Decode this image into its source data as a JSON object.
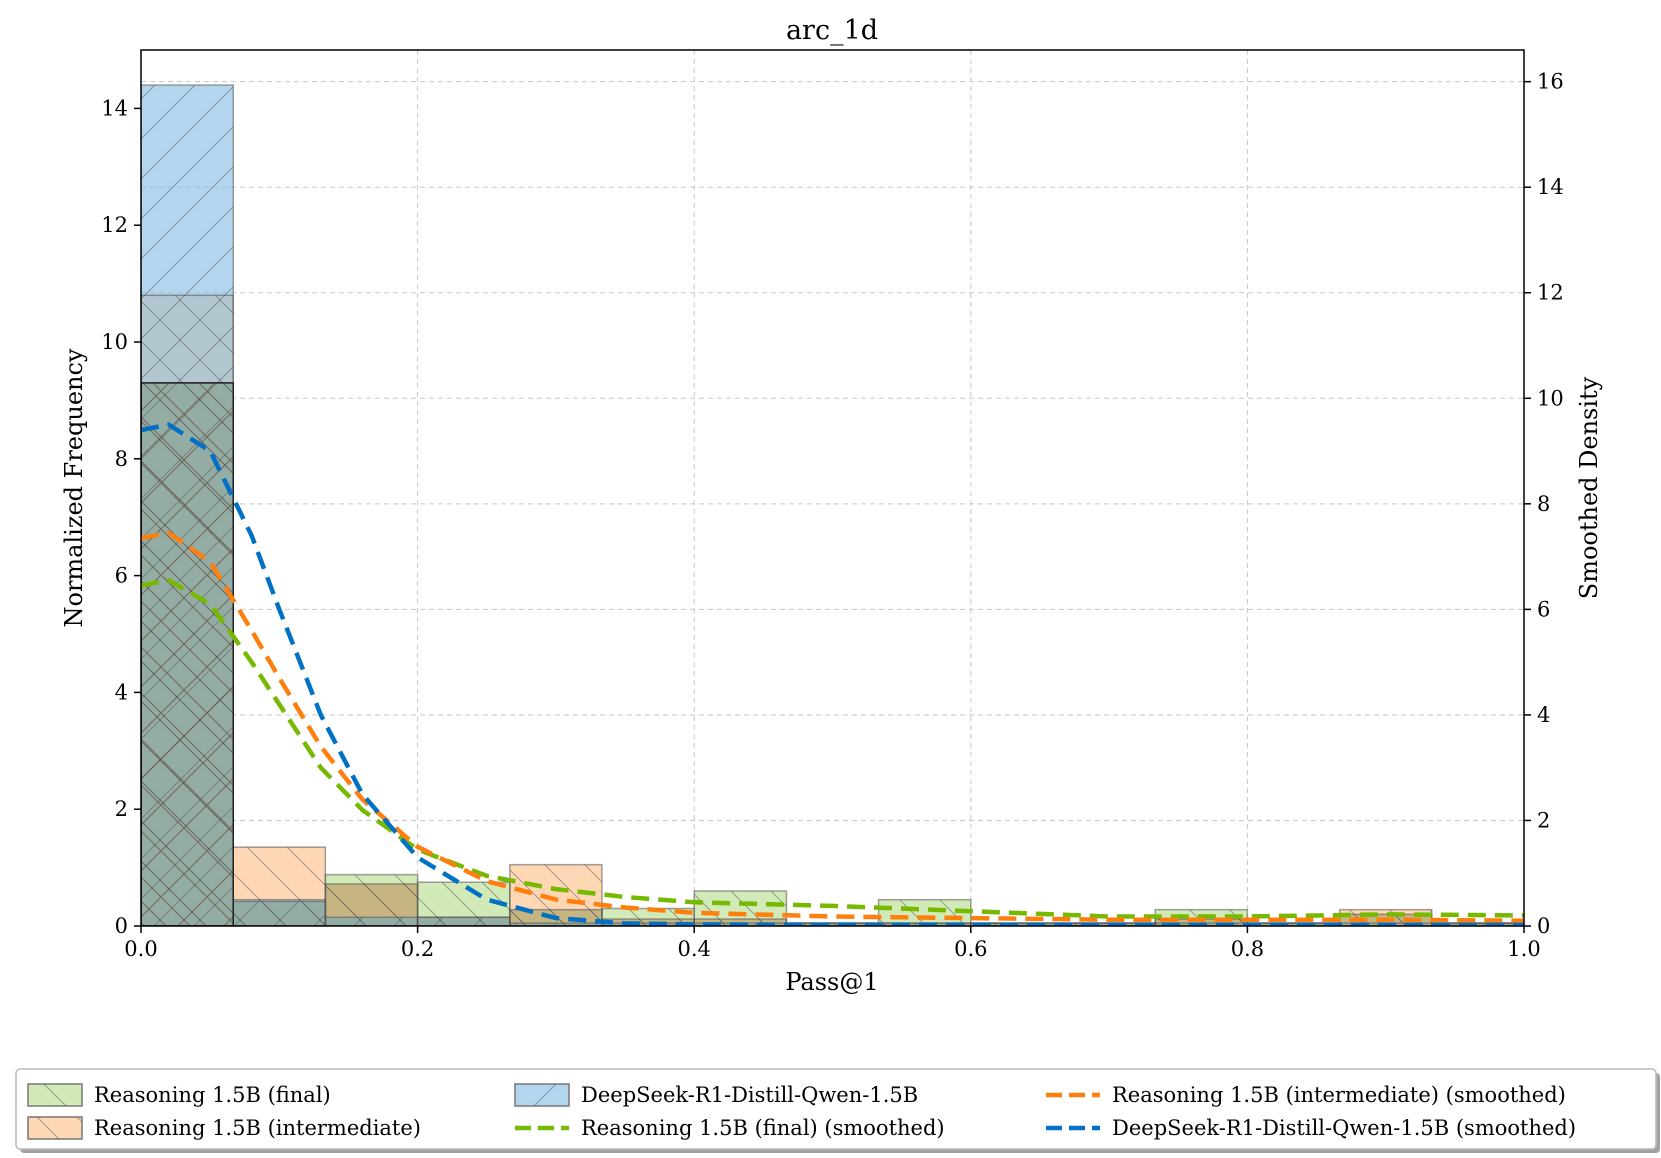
{
  "chart_data": {
    "type": "bar",
    "title": "arc_1d",
    "xlabel": "Pass@1",
    "ylabel": "Normalized Frequency",
    "y2label": "Smoothed Density",
    "xlim": [
      0,
      1
    ],
    "ylim": [
      0,
      15
    ],
    "y2lim": [
      0,
      16.6
    ],
    "xticks": [
      "0.0",
      "0.2",
      "0.4",
      "0.6",
      "0.8",
      "1.0"
    ],
    "yticks": [
      "0",
      "2",
      "4",
      "6",
      "8",
      "10",
      "12",
      "14"
    ],
    "y2ticks": [
      "0",
      "2",
      "4",
      "6",
      "8",
      "10",
      "12",
      "14",
      "16"
    ],
    "grid": true,
    "legend_position": "bottom",
    "bin_edges": [
      0,
      0.0667,
      0.1333,
      0.2,
      0.2667,
      0.3333,
      0.4,
      0.4667,
      0.5333,
      0.6,
      0.6667,
      0.7333,
      0.8,
      0.8667,
      0.9333,
      1.0
    ],
    "histograms": [
      {
        "name": "Reasoning 1.5B (final)",
        "color": "#b5dd8a",
        "hatch": "backslash",
        "values": [
          9.3,
          0.42,
          0.88,
          0.75,
          0.28,
          0.3,
          0.6,
          0.05,
          0.45,
          0.05,
          0.05,
          0.28,
          0.05,
          0.2,
          0.05
        ]
      },
      {
        "name": "Reasoning 1.5B (intermediate)",
        "color": "#ffbe86",
        "hatch": "backslash",
        "values": [
          10.8,
          1.35,
          0.72,
          0.15,
          1.05,
          0.12,
          0.12,
          0.05,
          0.05,
          0.05,
          0.05,
          0.12,
          0.05,
          0.28,
          0.05
        ]
      },
      {
        "name": "DeepSeek-R1-Distill-Qwen-1.5B",
        "color": "#85bde3",
        "hatch": "slash",
        "values": [
          14.4,
          0.45,
          0.15,
          0.15,
          0.05,
          0.05,
          0.05,
          0.05,
          0.05,
          0.05,
          0.05,
          0.05,
          0.05,
          0.05,
          0.05
        ]
      }
    ],
    "series": [
      {
        "name": "Reasoning 1.5B (final) (smoothed)",
        "color": "#76b900",
        "x": [
          0,
          0.02,
          0.05,
          0.08,
          0.1,
          0.13,
          0.16,
          0.2,
          0.25,
          0.3,
          0.35,
          0.4,
          0.5,
          0.6,
          0.7,
          0.8,
          0.9,
          1.0
        ],
        "y": [
          6.45,
          6.55,
          6.1,
          5.0,
          4.2,
          3.0,
          2.2,
          1.45,
          0.95,
          0.7,
          0.55,
          0.45,
          0.38,
          0.28,
          0.18,
          0.18,
          0.22,
          0.2
        ]
      },
      {
        "name": "Reasoning 1.5B (intermediate) (smoothed)",
        "color": "#ff7f0e",
        "x": [
          0,
          0.02,
          0.05,
          0.08,
          0.1,
          0.13,
          0.16,
          0.2,
          0.25,
          0.3,
          0.35,
          0.4,
          0.5,
          0.6,
          0.7,
          0.8,
          0.9,
          1.0
        ],
        "y": [
          7.35,
          7.45,
          6.9,
          5.6,
          4.7,
          3.4,
          2.4,
          1.5,
          0.85,
          0.5,
          0.35,
          0.25,
          0.18,
          0.15,
          0.12,
          0.12,
          0.12,
          0.1
        ]
      },
      {
        "name": "DeepSeek-R1-Distill-Qwen-1.5B (smoothed)",
        "color": "#0071c5",
        "x": [
          0,
          0.02,
          0.05,
          0.08,
          0.1,
          0.13,
          0.16,
          0.2,
          0.25,
          0.3,
          0.35,
          0.4,
          0.5,
          0.6,
          0.7,
          0.8,
          0.9,
          1.0
        ],
        "y": [
          9.4,
          9.5,
          9.0,
          7.4,
          6.0,
          4.0,
          2.5,
          1.3,
          0.5,
          0.15,
          0.05,
          0.03,
          0.02,
          0.02,
          0.02,
          0.02,
          0.02,
          0.02
        ]
      }
    ],
    "legend": [
      "Reasoning 1.5B (final)",
      "DeepSeek-R1-Distill-Qwen-1.5B",
      "Reasoning 1.5B (intermediate) (smoothed)",
      "Reasoning 1.5B (intermediate)",
      "Reasoning 1.5B (final) (smoothed)",
      "DeepSeek-R1-Distill-Qwen-1.5B (smoothed)"
    ]
  }
}
